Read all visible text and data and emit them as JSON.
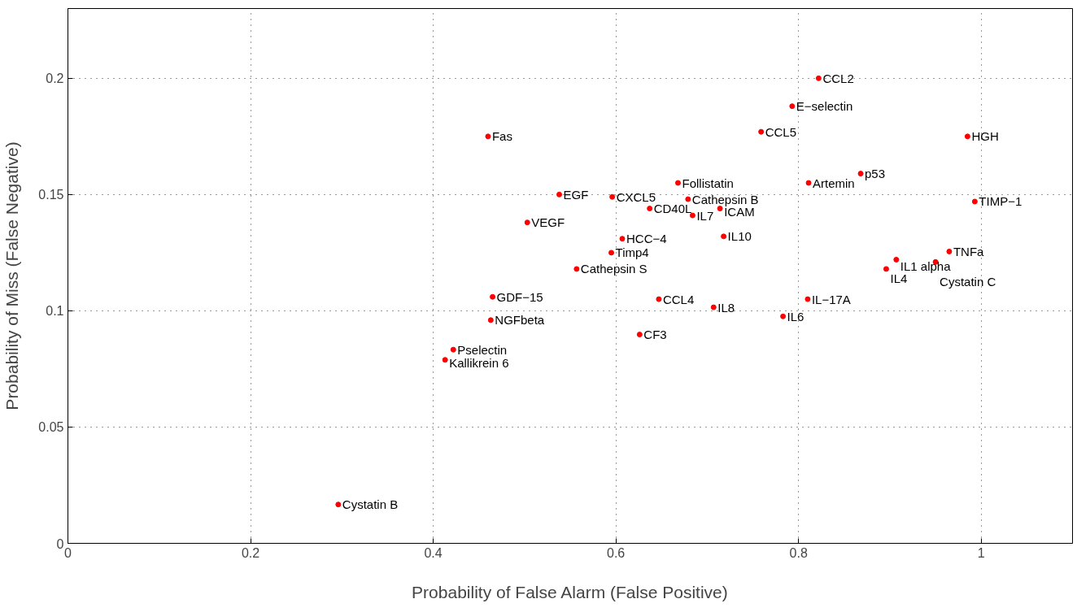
{
  "chart_data": {
    "type": "scatter",
    "xlabel": "Probability of False Alarm (False Positive)",
    "ylabel": "Probability of Miss (False Negative)",
    "xlim": [
      0,
      1.1
    ],
    "ylim": [
      0,
      0.23
    ],
    "xticks": [
      0,
      0.2,
      0.4,
      0.6,
      0.8,
      1
    ],
    "yticks": [
      0,
      0.05,
      0.1,
      0.15,
      0.2
    ],
    "grid": true,
    "marker": "circle",
    "series": [
      {
        "color": "#ff0000",
        "x": [
          0.46,
          0.538,
          0.596,
          0.668,
          0.637,
          0.503,
          0.607,
          0.595,
          0.557,
          0.465,
          0.647,
          0.463,
          0.626,
          0.422,
          0.413,
          0.822,
          0.793,
          0.759,
          0.985,
          0.868,
          0.811,
          0.679,
          0.714,
          0.684,
          0.993,
          0.718,
          0.965,
          0.907,
          0.95,
          0.896,
          0.81,
          0.707,
          0.783,
          0.296
        ],
        "values": [
          0.175,
          0.15,
          0.149,
          0.155,
          0.144,
          0.138,
          0.131,
          0.125,
          0.118,
          0.106,
          0.105,
          0.096,
          0.0898,
          0.0833,
          0.0789,
          0.2,
          0.188,
          0.177,
          0.175,
          0.159,
          0.155,
          0.148,
          0.144,
          0.141,
          0.147,
          0.132,
          0.1255,
          0.122,
          0.121,
          0.118,
          0.105,
          0.1015,
          0.0976,
          0.0167
        ]
      }
    ],
    "annotations": [
      {
        "text": "Fas",
        "x": 0.46,
        "y": 0.175
      },
      {
        "text": "EGF",
        "x": 0.538,
        "y": 0.15
      },
      {
        "text": "CXCL5",
        "x": 0.596,
        "y": 0.149
      },
      {
        "text": "Follistatin",
        "x": 0.668,
        "y": 0.155
      },
      {
        "text": "CD40L",
        "x": 0.637,
        "y": 0.144
      },
      {
        "text": "VEGF",
        "x": 0.503,
        "y": 0.138
      },
      {
        "text": "HCC−4",
        "x": 0.607,
        "y": 0.131
      },
      {
        "text": "Timp4",
        "x": 0.595,
        "y": 0.125
      },
      {
        "text": "Cathepsin S",
        "x": 0.557,
        "y": 0.118
      },
      {
        "text": "GDF−15",
        "x": 0.465,
        "y": 0.106
      },
      {
        "text": "CCL4",
        "x": 0.647,
        "y": 0.105
      },
      {
        "text": "NGFbeta",
        "x": 0.463,
        "y": 0.096
      },
      {
        "text": "CF3",
        "x": 0.626,
        "y": 0.0898
      },
      {
        "text": "Pselectin",
        "x": 0.422,
        "y": 0.0833
      },
      {
        "text": "Kallikrein 6",
        "x": 0.413,
        "y": 0.0789
      },
      {
        "text": "CCL2",
        "x": 0.822,
        "y": 0.2
      },
      {
        "text": "E−selectin",
        "x": 0.793,
        "y": 0.188
      },
      {
        "text": "CCL5",
        "x": 0.759,
        "y": 0.177
      },
      {
        "text": "HGH",
        "x": 0.985,
        "y": 0.175
      },
      {
        "text": "p53",
        "x": 0.868,
        "y": 0.159
      },
      {
        "text": "Artemin",
        "x": 0.811,
        "y": 0.155
      },
      {
        "text": "Cathepsin B",
        "x": 0.679,
        "y": 0.148
      },
      {
        "text": "ICAM",
        "x": 0.714,
        "y": 0.144
      },
      {
        "text": "IL7",
        "x": 0.684,
        "y": 0.141
      },
      {
        "text": "TIMP−1",
        "x": 0.993,
        "y": 0.147
      },
      {
        "text": "IL10",
        "x": 0.718,
        "y": 0.132
      },
      {
        "text": "TNFa",
        "x": 0.965,
        "y": 0.1255
      },
      {
        "text": "IL1 alpha",
        "x": 0.907,
        "y": 0.122
      },
      {
        "text": "Cystatin C",
        "x": 0.95,
        "y": 0.121
      },
      {
        "text": "IL4",
        "x": 0.896,
        "y": 0.118
      },
      {
        "text": "IL−17A",
        "x": 0.81,
        "y": 0.105
      },
      {
        "text": "IL8",
        "x": 0.707,
        "y": 0.1015
      },
      {
        "text": "IL6",
        "x": 0.783,
        "y": 0.0976
      },
      {
        "text": "Cystatin B",
        "x": 0.296,
        "y": 0.0167
      }
    ]
  }
}
